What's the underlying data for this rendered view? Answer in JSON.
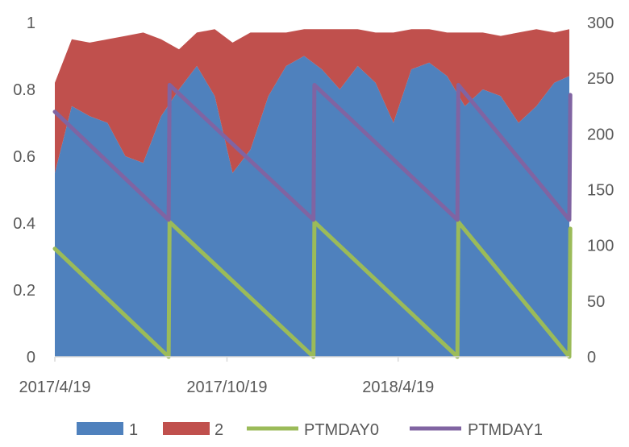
{
  "chart_data": {
    "type": "area",
    "x_ticks": [
      "2017/4/19",
      "2017/10/19",
      "2018/4/19"
    ],
    "x_range": [
      "2017-04-19",
      "2018-10-18"
    ],
    "y_left": {
      "ticks": [
        0,
        0.2,
        0.4,
        0.6,
        0.8,
        1
      ],
      "range": [
        0,
        1
      ]
    },
    "y_right": {
      "ticks": [
        0,
        50,
        100,
        150,
        200,
        250,
        300
      ],
      "range": [
        0,
        300
      ]
    },
    "grid": false,
    "legend_position": "bottom",
    "series": [
      {
        "name": "1",
        "type": "area",
        "axis": "left",
        "stack": true,
        "color": "#4f81bd",
        "x": [
          "2017-04-19",
          "2017-05-07",
          "2017-05-26",
          "2017-06-14",
          "2017-07-03",
          "2017-07-22",
          "2017-08-10",
          "2017-08-29",
          "2017-09-17",
          "2017-10-06",
          "2017-10-25",
          "2017-11-13",
          "2017-12-02",
          "2017-12-21",
          "2018-01-09",
          "2018-01-28",
          "2018-02-16",
          "2018-03-07",
          "2018-03-26",
          "2018-04-14",
          "2018-05-03",
          "2018-05-22",
          "2018-06-10",
          "2018-06-29",
          "2018-07-18",
          "2018-08-06",
          "2018-08-25",
          "2018-09-13",
          "2018-10-02",
          "2018-10-18"
        ],
        "values": [
          0.55,
          0.75,
          0.72,
          0.7,
          0.6,
          0.58,
          0.72,
          0.8,
          0.87,
          0.78,
          0.55,
          0.62,
          0.78,
          0.87,
          0.9,
          0.86,
          0.8,
          0.87,
          0.82,
          0.7,
          0.86,
          0.88,
          0.84,
          0.75,
          0.8,
          0.78,
          0.7,
          0.75,
          0.82,
          0.84
        ]
      },
      {
        "name": "2",
        "type": "area",
        "axis": "left",
        "stack": true,
        "color": "#c0504d",
        "x": [
          "2017-04-19",
          "2017-05-07",
          "2017-05-26",
          "2017-06-14",
          "2017-07-03",
          "2017-07-22",
          "2017-08-10",
          "2017-08-29",
          "2017-09-17",
          "2017-10-06",
          "2017-10-25",
          "2017-11-13",
          "2017-12-02",
          "2017-12-21",
          "2018-01-09",
          "2018-01-28",
          "2018-02-16",
          "2018-03-07",
          "2018-03-26",
          "2018-04-14",
          "2018-05-03",
          "2018-05-22",
          "2018-06-10",
          "2018-06-29",
          "2018-07-18",
          "2018-08-06",
          "2018-08-25",
          "2018-09-13",
          "2018-10-02",
          "2018-10-18"
        ],
        "values": [
          0.27,
          0.2,
          0.22,
          0.25,
          0.36,
          0.39,
          0.23,
          0.12,
          0.1,
          0.2,
          0.39,
          0.35,
          0.19,
          0.1,
          0.08,
          0.12,
          0.18,
          0.11,
          0.15,
          0.27,
          0.12,
          0.1,
          0.13,
          0.22,
          0.17,
          0.18,
          0.27,
          0.23,
          0.15,
          0.14
        ]
      },
      {
        "name": "PTMDAY0",
        "type": "line",
        "axis": "right",
        "color": "#9bbb59",
        "x": [
          "2017-04-19",
          "2017-08-18",
          "2017-08-19",
          "2018-01-19",
          "2018-01-20",
          "2018-06-21",
          "2018-06-22",
          "2018-10-18",
          "2018-10-19"
        ],
        "values": [
          97,
          0,
          121,
          0,
          121,
          0,
          121,
          0,
          115
        ]
      },
      {
        "name": "PTMDAY1",
        "type": "line",
        "axis": "right",
        "color": "#8064a2",
        "x": [
          "2017-04-19",
          "2017-08-18",
          "2017-08-19",
          "2018-01-19",
          "2018-01-20",
          "2018-06-21",
          "2018-06-22",
          "2018-10-18",
          "2018-10-19"
        ],
        "values": [
          220,
          123,
          244,
          123,
          244,
          123,
          244,
          123,
          235
        ]
      }
    ]
  }
}
